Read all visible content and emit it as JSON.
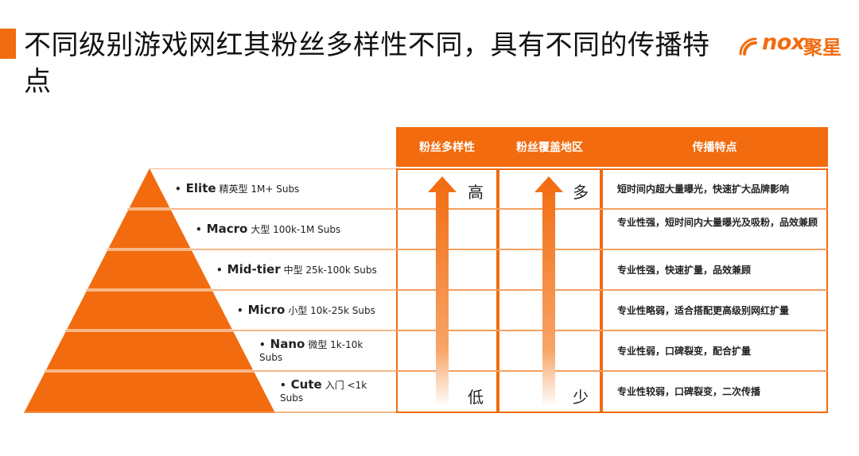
{
  "header": {
    "title": "不同级别游戏网红其粉丝多样性不同，具有不同的传播特点",
    "logo_text": "nox",
    "logo_cn": "聚星"
  },
  "table": {
    "columns": [
      "粉丝多样性",
      "粉丝覆盖地区",
      "传播特点"
    ],
    "diversity_high": "高",
    "diversity_low": "低",
    "coverage_high": "多",
    "coverage_low": "少"
  },
  "tiers": [
    {
      "bullet": "•",
      "name": "Elite",
      "desc": "精英型 1M+ Subs",
      "spread": "短时间内超大量曝光，快速扩大品牌影响"
    },
    {
      "bullet": "•",
      "name": "Macro",
      "desc": "大型 100k-1M Subs",
      "spread": "专业性强，短时间内大量曝光及吸粉，品效兼顾"
    },
    {
      "bullet": "•",
      "name": "Mid-tier",
      "desc": "中型 25k-100k Subs",
      "spread": "专业性强，快速扩量，品效兼顾"
    },
    {
      "bullet": "•",
      "name": "Micro",
      "desc": "小型 10k-25k Subs",
      "spread": "专业性略弱，适合搭配更高级别网红扩量"
    },
    {
      "bullet": "•",
      "name": "Nano",
      "desc": "微型 1k-10k Subs",
      "spread": "专业性弱，口碑裂变，配合扩量"
    },
    {
      "bullet": "•",
      "name": "Cute",
      "desc": "入门 <1k Subs",
      "spread": "专业性较弱，口碑裂变，二次传播"
    }
  ],
  "colors": {
    "accent": "#f26b0f",
    "divider": "#f5a060"
  }
}
